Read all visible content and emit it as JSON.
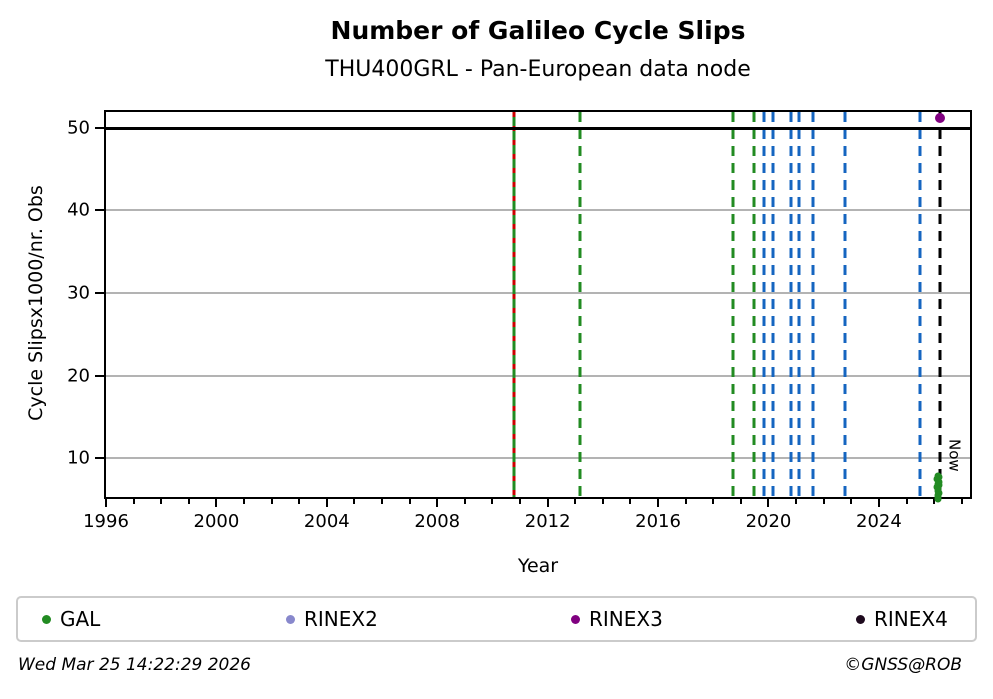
{
  "title": "Number of Galileo Cycle Slips",
  "subtitle": "THU400GRL - Pan-European data node",
  "footer": {
    "timestamp": "Wed Mar 25 14:22:29 2026",
    "credit": "©GNSS@ROB"
  },
  "legend": [
    {
      "label": "GAL",
      "color": "#228B22"
    },
    {
      "label": "RINEX2",
      "color": "#8888cc"
    },
    {
      "label": "RINEX3",
      "color": "#800080"
    },
    {
      "label": "RINEX4",
      "color": "#1e0a1e"
    }
  ],
  "chart_data": {
    "type": "scatter",
    "title": "Number of Galileo Cycle Slips",
    "subtitle": "THU400GRL - Pan-European data node",
    "xlabel": "Year",
    "ylabel": "Cycle Slipsx1000/nr. Obs",
    "xlim": [
      1996,
      2027.3
    ],
    "ylim": [
      5.3,
      51.9
    ],
    "xticks_major": [
      1996,
      2000,
      2004,
      2008,
      2012,
      2016,
      2020,
      2024
    ],
    "xticks_minor_step": 1,
    "yticks": [
      10,
      20,
      30,
      40,
      50
    ],
    "ygrid": [
      10,
      20,
      30,
      40
    ],
    "grid": "horizontal-only",
    "threshold_line": {
      "y": 50,
      "color": "#000000",
      "style": "solid-thick"
    },
    "event_lines": [
      {
        "year": 2010.78,
        "color": "#228B22",
        "style": "solid"
      },
      {
        "year": 2010.78,
        "color": "#cc0000",
        "style": "dashed-fine"
      },
      {
        "year": 2013.17,
        "color": "#228B22",
        "style": "dashed"
      },
      {
        "year": 2018.73,
        "color": "#228B22",
        "style": "dashed"
      },
      {
        "year": 2019.46,
        "color": "#228B22",
        "style": "dashed"
      },
      {
        "year": 2019.82,
        "color": "#1565c0",
        "style": "dashed"
      },
      {
        "year": 2020.18,
        "color": "#1565c0",
        "style": "dashed"
      },
      {
        "year": 2020.83,
        "color": "#1565c0",
        "style": "dashed"
      },
      {
        "year": 2021.12,
        "color": "#1565c0",
        "style": "dashed"
      },
      {
        "year": 2021.63,
        "color": "#1565c0",
        "style": "dashed"
      },
      {
        "year": 2022.78,
        "color": "#1565c0",
        "style": "dashed"
      },
      {
        "year": 2025.49,
        "color": "#1565c0",
        "style": "dashed"
      },
      {
        "year": 2026.23,
        "color": "#000000",
        "style": "dashed",
        "label": "Now"
      }
    ],
    "points": [
      {
        "x": 2026.2,
        "y": 51.2,
        "series": "RINEX3"
      },
      {
        "x": 2026.13,
        "y": 7.9,
        "series": "GAL"
      },
      {
        "x": 2026.16,
        "y": 7.7,
        "series": "GAL"
      },
      {
        "x": 2026.12,
        "y": 7.5,
        "series": "GAL"
      },
      {
        "x": 2026.15,
        "y": 7.3,
        "series": "GAL"
      },
      {
        "x": 2026.17,
        "y": 7.1,
        "series": "GAL"
      },
      {
        "x": 2026.13,
        "y": 6.9,
        "series": "GAL"
      },
      {
        "x": 2026.16,
        "y": 6.7,
        "series": "GAL"
      },
      {
        "x": 2026.12,
        "y": 6.5,
        "series": "GAL"
      },
      {
        "x": 2026.15,
        "y": 6.3,
        "series": "GAL"
      },
      {
        "x": 2026.14,
        "y": 6.0,
        "series": "GAL"
      },
      {
        "x": 2026.16,
        "y": 5.8,
        "series": "GAL"
      },
      {
        "x": 2026.13,
        "y": 5.6,
        "series": "GAL"
      },
      {
        "x": 2026.15,
        "y": 5.3,
        "series": "GAL"
      },
      {
        "x": 2026.14,
        "y": 5.1,
        "series": "GAL"
      }
    ],
    "legend_entries": [
      "GAL",
      "RINEX2",
      "RINEX3",
      "RINEX4"
    ],
    "legend_position": "bottom"
  }
}
